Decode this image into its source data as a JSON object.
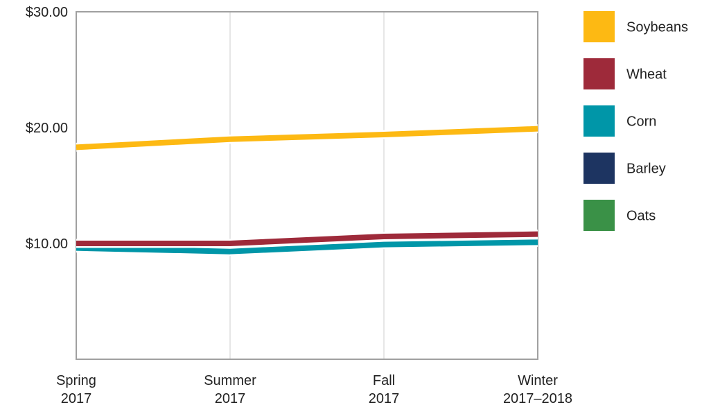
{
  "chart_data": {
    "type": "line",
    "title": "",
    "xlabel": "",
    "ylabel": "",
    "categories": [
      [
        "Spring",
        "2017"
      ],
      [
        "Summer",
        "2017"
      ],
      [
        "Fall",
        "2017"
      ],
      [
        "Winter",
        "2017–2018"
      ]
    ],
    "ylim": [
      0,
      30
    ],
    "yticks": [
      {
        "value": 10,
        "label": "$10.00"
      },
      {
        "value": 20,
        "label": "$20.00"
      },
      {
        "value": 30,
        "label": "$30.00"
      }
    ],
    "grid": "vertical",
    "legend_position": "right",
    "series": [
      {
        "name": "Soybeans",
        "color": "#fdb913",
        "values": [
          18.3,
          19.0,
          19.4,
          19.9
        ],
        "draw_order": 3
      },
      {
        "name": "Wheat",
        "color": "#9e2a3a",
        "values": [
          10.0,
          10.0,
          10.6,
          10.8
        ],
        "draw_order": 2
      },
      {
        "name": "Corn",
        "color": "#0096a8",
        "values": [
          9.6,
          9.3,
          9.9,
          10.1
        ],
        "draw_order": 1
      },
      {
        "name": "Barley",
        "color": "#1d3461",
        "values": [
          null,
          null,
          null,
          null
        ],
        "draw_order": 0
      },
      {
        "name": "Oats",
        "color": "#3a9147",
        "values": [
          null,
          null,
          null,
          null
        ],
        "draw_order": 0
      }
    ]
  }
}
